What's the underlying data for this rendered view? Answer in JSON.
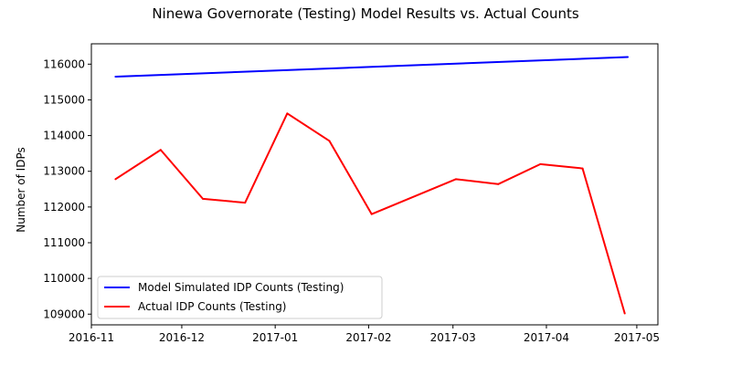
{
  "chart_data": {
    "type": "line",
    "title": "Ninewa Governorate (Testing) Model Results vs. Actual Counts",
    "xlabel": "",
    "ylabel": "Number of IDPs",
    "xlim": [
      "2016-11-01",
      "2017-05-08"
    ],
    "ylim": [
      108700,
      116570
    ],
    "x_ticks": [
      "2016-11-01",
      "2016-12-01",
      "2017-01-01",
      "2017-02-01",
      "2017-03-01",
      "2017-04-01",
      "2017-05-01"
    ],
    "x_tick_labels": [
      "2016-11",
      "2016-12",
      "2017-01",
      "2017-02",
      "2017-03",
      "2017-04",
      "2017-05"
    ],
    "y_ticks": [
      109000,
      110000,
      111000,
      112000,
      113000,
      114000,
      115000,
      116000
    ],
    "y_tick_labels": [
      "109000",
      "110000",
      "111000",
      "112000",
      "113000",
      "114000",
      "115000",
      "116000"
    ],
    "grid": false,
    "legend_position": "lower-left",
    "series": [
      {
        "name": "Model Simulated IDP Counts (Testing)",
        "color": "#0000ff",
        "x": [
          "2016-11-09",
          "2017-04-28"
        ],
        "y": [
          115650,
          116200
        ]
      },
      {
        "name": "Actual IDP Counts (Testing)",
        "color": "#ff0000",
        "x": [
          "2016-11-09",
          "2016-11-24",
          "2016-12-08",
          "2016-12-22",
          "2017-01-05",
          "2017-01-19",
          "2017-02-02",
          "2017-03-02",
          "2017-03-16",
          "2017-03-30",
          "2017-04-13",
          "2017-04-27"
        ],
        "y": [
          112780,
          113600,
          112230,
          112120,
          114620,
          113850,
          111800,
          112780,
          112640,
          113200,
          113080,
          109020
        ]
      }
    ]
  }
}
